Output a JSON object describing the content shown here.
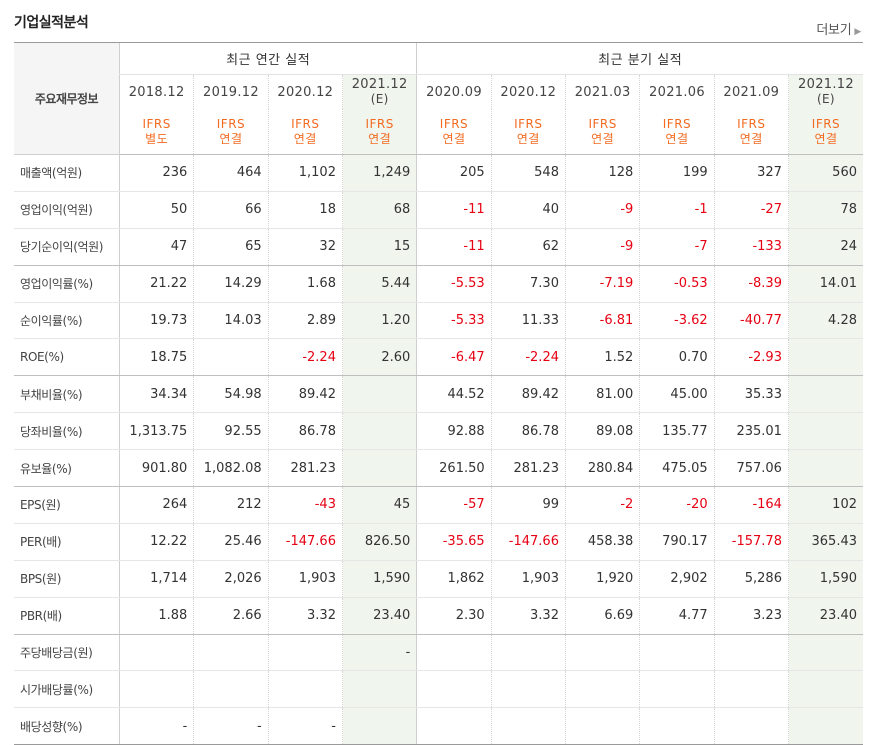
{
  "section_title": "기업실적분석",
  "more_link": "더보기",
  "header": {
    "row_label": "주요재무정보",
    "annual_group": "최근 연간 실적",
    "quarter_group": "최근 분기 실적",
    "periods": [
      {
        "label": "2018.12",
        "sub": "",
        "basis1": "IFRS",
        "basis2": "별도",
        "estimate": false,
        "group": "annual"
      },
      {
        "label": "2019.12",
        "sub": "",
        "basis1": "IFRS",
        "basis2": "연결",
        "estimate": false,
        "group": "annual"
      },
      {
        "label": "2020.12",
        "sub": "",
        "basis1": "IFRS",
        "basis2": "연결",
        "estimate": false,
        "group": "annual"
      },
      {
        "label": "2021.12",
        "sub": "(E)",
        "basis1": "IFRS",
        "basis2": "연결",
        "estimate": true,
        "group": "annual"
      },
      {
        "label": "2020.09",
        "sub": "",
        "basis1": "IFRS",
        "basis2": "연결",
        "estimate": false,
        "group": "quarter"
      },
      {
        "label": "2020.12",
        "sub": "",
        "basis1": "IFRS",
        "basis2": "연결",
        "estimate": false,
        "group": "quarter"
      },
      {
        "label": "2021.03",
        "sub": "",
        "basis1": "IFRS",
        "basis2": "연결",
        "estimate": false,
        "group": "quarter"
      },
      {
        "label": "2021.06",
        "sub": "",
        "basis1": "IFRS",
        "basis2": "연결",
        "estimate": false,
        "group": "quarter"
      },
      {
        "label": "2021.09",
        "sub": "",
        "basis1": "IFRS",
        "basis2": "연결",
        "estimate": false,
        "group": "quarter"
      },
      {
        "label": "2021.12",
        "sub": "(E)",
        "basis1": "IFRS",
        "basis2": "연결",
        "estimate": true,
        "group": "quarter"
      }
    ]
  },
  "rows": [
    {
      "label": "매출액(억원)",
      "values": [
        "236",
        "464",
        "1,102",
        "1,249",
        "205",
        "548",
        "128",
        "199",
        "327",
        "560"
      ],
      "group_end": false
    },
    {
      "label": "영업이익(억원)",
      "values": [
        "50",
        "66",
        "18",
        "68",
        "-11",
        "40",
        "-9",
        "-1",
        "-27",
        "78"
      ],
      "group_end": false
    },
    {
      "label": "당기순이익(억원)",
      "values": [
        "47",
        "65",
        "32",
        "15",
        "-11",
        "62",
        "-9",
        "-7",
        "-133",
        "24"
      ],
      "group_end": true
    },
    {
      "label": "영업이익률(%)",
      "values": [
        "21.22",
        "14.29",
        "1.68",
        "5.44",
        "-5.53",
        "7.30",
        "-7.19",
        "-0.53",
        "-8.39",
        "14.01"
      ],
      "group_end": false
    },
    {
      "label": "순이익률(%)",
      "values": [
        "19.73",
        "14.03",
        "2.89",
        "1.20",
        "-5.33",
        "11.33",
        "-6.81",
        "-3.62",
        "-40.77",
        "4.28"
      ],
      "group_end": false
    },
    {
      "label": "ROE(%)",
      "values": [
        "18.75",
        "",
        "-2.24",
        "2.60",
        "-6.47",
        "-2.24",
        "1.52",
        "0.70",
        "-2.93",
        ""
      ],
      "group_end": true
    },
    {
      "label": "부채비율(%)",
      "values": [
        "34.34",
        "54.98",
        "89.42",
        "",
        "44.52",
        "89.42",
        "81.00",
        "45.00",
        "35.33",
        ""
      ],
      "group_end": false
    },
    {
      "label": "당좌비율(%)",
      "values": [
        "1,313.75",
        "92.55",
        "86.78",
        "",
        "92.88",
        "86.78",
        "89.08",
        "135.77",
        "235.01",
        ""
      ],
      "group_end": false
    },
    {
      "label": "유보율(%)",
      "values": [
        "901.80",
        "1,082.08",
        "281.23",
        "",
        "261.50",
        "281.23",
        "280.84",
        "475.05",
        "757.06",
        ""
      ],
      "group_end": true
    },
    {
      "label": "EPS(원)",
      "values": [
        "264",
        "212",
        "-43",
        "45",
        "-57",
        "99",
        "-2",
        "-20",
        "-164",
        "102"
      ],
      "group_end": false
    },
    {
      "label": "PER(배)",
      "values": [
        "12.22",
        "25.46",
        "-147.66",
        "826.50",
        "-35.65",
        "-147.66",
        "458.38",
        "790.17",
        "-157.78",
        "365.43"
      ],
      "group_end": false
    },
    {
      "label": "BPS(원)",
      "values": [
        "1,714",
        "2,026",
        "1,903",
        "1,590",
        "1,862",
        "1,903",
        "1,920",
        "2,902",
        "5,286",
        "1,590"
      ],
      "group_end": false
    },
    {
      "label": "PBR(배)",
      "values": [
        "1.88",
        "2.66",
        "3.32",
        "23.40",
        "2.30",
        "3.32",
        "6.69",
        "4.77",
        "3.23",
        "23.40"
      ],
      "group_end": true
    },
    {
      "label": "주당배당금(원)",
      "values": [
        "",
        "",
        "",
        "-",
        "",
        "",
        "",
        "",
        "",
        ""
      ],
      "group_end": false
    },
    {
      "label": "시가배당률(%)",
      "values": [
        "",
        "",
        "",
        "",
        "",
        "",
        "",
        "",
        "",
        ""
      ],
      "group_end": false
    },
    {
      "label": "배당성향(%)",
      "values": [
        "-",
        "-",
        "-",
        "",
        "",
        "",
        "",
        "",
        "",
        ""
      ],
      "group_end": false
    }
  ],
  "colors": {
    "basis_text": "#f26b21",
    "negative_text": "#e60012",
    "estimate_background": "#f0f5ee"
  }
}
